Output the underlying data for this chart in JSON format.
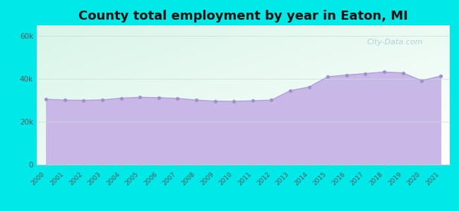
{
  "title": "County total employment by year in Eaton, MI",
  "years": [
    2000,
    2001,
    2002,
    2003,
    2004,
    2005,
    2006,
    2007,
    2008,
    2009,
    2010,
    2011,
    2012,
    2013,
    2014,
    2015,
    2016,
    2017,
    2018,
    2019,
    2020,
    2021
  ],
  "values": [
    30500,
    30100,
    30000,
    30200,
    31000,
    31400,
    31200,
    30900,
    30100,
    29600,
    29500,
    29800,
    30100,
    34500,
    36200,
    41000,
    41800,
    42500,
    43200,
    42800,
    39200,
    41300
  ],
  "fill_color": "#c8b8e8",
  "line_color": "#b0a0d8",
  "dot_color": "#a090cc",
  "background_outer": "#00e8e8",
  "background_inner_top_left": "#d8f5e8",
  "background_inner_bottom": "#e8f8f8",
  "title_color": "#111111",
  "title_fontsize": 13,
  "ylim": [
    0,
    65000
  ],
  "yticks": [
    0,
    20000,
    40000,
    60000
  ],
  "ytick_labels": [
    "0",
    "20k",
    "40k",
    "60k"
  ],
  "watermark_text": "City-Data.com",
  "watermark_color": "#a8ccd8",
  "grid_color": "#ccddcc",
  "axes_bottom_color": "#cccccc"
}
